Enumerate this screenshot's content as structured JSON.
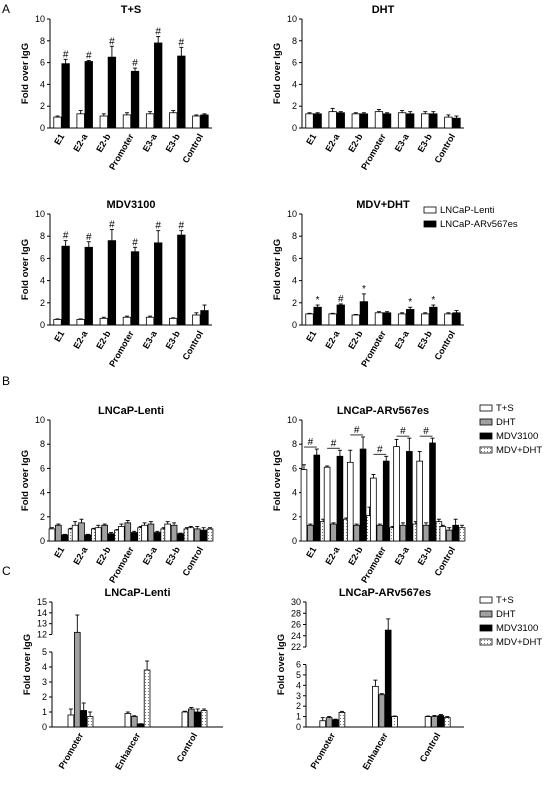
{
  "figure": {
    "panel_labels": [
      "A",
      "B",
      "C"
    ]
  },
  "chart_data": [
    {
      "panel": "A",
      "type": "bar",
      "title": "T+S",
      "ylabel": "Fold over IgG",
      "ylim": [
        0,
        10
      ],
      "yticks": [
        0,
        2,
        4,
        6,
        8,
        10
      ],
      "categories": [
        "E1",
        "E2-a",
        "E2-b",
        "Promoter",
        "E3-a",
        "E3-b",
        "Control"
      ],
      "series": [
        {
          "name": "LNCaP-Lenti",
          "values": [
            1.0,
            1.3,
            1.1,
            1.2,
            1.3,
            1.4,
            1.1
          ],
          "errors": [
            0.1,
            0.3,
            0.2,
            0.2,
            0.2,
            0.2,
            0.1
          ],
          "fill": "#ffffff"
        },
        {
          "name": "LNCaP-ARv567es",
          "values": [
            5.9,
            6.1,
            6.5,
            5.2,
            7.8,
            6.6,
            1.2
          ],
          "errors": [
            0.4,
            0.1,
            1.0,
            0.3,
            0.6,
            0.8,
            0.1
          ],
          "fill": "#000000"
        }
      ],
      "annotations": [
        "",
        "#",
        "",
        "#",
        "",
        "#",
        "",
        "#",
        "",
        "#",
        "",
        "#",
        "",
        ""
      ]
    },
    {
      "panel": "A",
      "type": "bar",
      "title": "DHT",
      "ylabel": "Fold over IgG",
      "ylim": [
        0,
        10
      ],
      "yticks": [
        0,
        2,
        4,
        6,
        8,
        10
      ],
      "categories": [
        "E1",
        "E2-a",
        "E2-b",
        "Promoter",
        "E3-a",
        "E3-b",
        "Control"
      ],
      "series": [
        {
          "name": "LNCaP-Lenti",
          "values": [
            1.3,
            1.5,
            1.3,
            1.5,
            1.4,
            1.3,
            1.0
          ],
          "errors": [
            0.1,
            0.3,
            0.1,
            0.2,
            0.2,
            0.2,
            0.2
          ],
          "fill": "#ffffff"
        },
        {
          "name": "LNCaP-ARv567es",
          "values": [
            1.3,
            1.4,
            1.3,
            1.3,
            1.3,
            1.3,
            0.9
          ],
          "errors": [
            0.1,
            0.1,
            0.1,
            0.1,
            0.2,
            0.2,
            0.2
          ],
          "fill": "#000000"
        }
      ],
      "annotations": []
    },
    {
      "panel": "A",
      "type": "bar",
      "title": "MDV3100",
      "ylabel": "Fold over IgG",
      "ylim": [
        0,
        10
      ],
      "yticks": [
        0,
        2,
        4,
        6,
        8,
        10
      ],
      "categories": [
        "E1",
        "E2-a",
        "E2-b",
        "Promoter",
        "E3-a",
        "E3-b",
        "Control"
      ],
      "series": [
        {
          "name": "LNCaP-Lenti",
          "values": [
            0.5,
            0.5,
            0.6,
            0.7,
            0.7,
            0.6,
            0.9
          ],
          "errors": [
            0.05,
            0.05,
            0.1,
            0.1,
            0.1,
            0.05,
            0.2
          ],
          "fill": "#ffffff"
        },
        {
          "name": "LNCaP-ARv567es",
          "values": [
            7.1,
            7.0,
            7.6,
            6.6,
            7.4,
            8.1,
            1.3
          ],
          "errors": [
            0.5,
            0.5,
            1.0,
            0.4,
            1.1,
            0.4,
            0.5
          ],
          "fill": "#000000"
        }
      ],
      "annotations": [
        "",
        "#",
        "",
        "#",
        "",
        "#",
        "",
        "#",
        "",
        "#",
        "",
        "#",
        "",
        ""
      ]
    },
    {
      "panel": "A",
      "type": "bar",
      "title": "MDV+DHT",
      "ylabel": "Fold over IgG",
      "ylim": [
        0,
        10
      ],
      "yticks": [
        0,
        2,
        4,
        6,
        8,
        10
      ],
      "categories": [
        "E1",
        "E2-a",
        "E2-b",
        "Promoter",
        "E3-a",
        "E3-b",
        "Control"
      ],
      "series": [
        {
          "name": "LNCaP-Lenti",
          "values": [
            1.0,
            1.0,
            0.9,
            1.1,
            1.0,
            1.0,
            1.0
          ],
          "errors": [
            0.05,
            0.05,
            0.05,
            0.1,
            0.1,
            0.1,
            0.1
          ],
          "fill": "#ffffff"
        },
        {
          "name": "LNCaP-ARv567es",
          "values": [
            1.6,
            1.8,
            2.1,
            1.1,
            1.4,
            1.6,
            1.1
          ],
          "errors": [
            0.2,
            0.1,
            0.7,
            0.1,
            0.2,
            0.2,
            0.2
          ],
          "fill": "#000000"
        }
      ],
      "annotations": [
        "",
        "*",
        "",
        "#",
        "",
        "*",
        "",
        "",
        "",
        "*",
        "",
        "*",
        "",
        ""
      ]
    },
    {
      "panel": "B",
      "type": "bar",
      "title": "LNCaP-Lenti",
      "ylabel": "Fold over IgG",
      "ylim": [
        0,
        10
      ],
      "yticks": [
        0,
        2,
        4,
        6,
        8,
        10
      ],
      "categories": [
        "E1",
        "E2-a",
        "E2-b",
        "Promoter",
        "E3-a",
        "E3-b",
        "Control"
      ],
      "series": [
        {
          "name": "T+S",
          "values": [
            1.0,
            1.3,
            1.1,
            1.2,
            1.3,
            1.4,
            1.1
          ],
          "errors": [
            0.1,
            0.3,
            0.2,
            0.2,
            0.2,
            0.2,
            0.1
          ],
          "fill": "#ffffff"
        },
        {
          "name": "DHT",
          "values": [
            1.3,
            1.5,
            1.3,
            1.5,
            1.4,
            1.3,
            1.0
          ],
          "errors": [
            0.1,
            0.3,
            0.1,
            0.2,
            0.2,
            0.2,
            0.2
          ],
          "fill": "#a0a0a0"
        },
        {
          "name": "MDV3100",
          "values": [
            0.5,
            0.5,
            0.6,
            0.7,
            0.7,
            0.6,
            0.9
          ],
          "errors": [
            0.05,
            0.05,
            0.1,
            0.1,
            0.1,
            0.05,
            0.2
          ],
          "fill": "#000000"
        },
        {
          "name": "MDV+DHT",
          "values": [
            1.0,
            1.0,
            0.9,
            1.1,
            1.0,
            1.0,
            1.0
          ],
          "errors": [
            0.05,
            0.05,
            0.05,
            0.1,
            0.1,
            0.1,
            0.1
          ],
          "fill": "#f4f4f4"
        }
      ],
      "annotations": []
    },
    {
      "panel": "B",
      "type": "bar",
      "title": "LNCaP-ARv567es",
      "ylabel": "Fold over IgG",
      "ylim": [
        0,
        10
      ],
      "yticks": [
        0,
        2,
        4,
        6,
        8,
        10
      ],
      "categories": [
        "E1",
        "E2-a",
        "E2-b",
        "Promoter",
        "E3-a",
        "E3-b",
        "Control"
      ],
      "series": [
        {
          "name": "T+S",
          "values": [
            5.9,
            6.1,
            6.5,
            5.2,
            7.8,
            6.6,
            1.2
          ],
          "errors": [
            0.4,
            0.1,
            1.0,
            0.3,
            0.6,
            0.8,
            0.1
          ],
          "fill": "#ffffff"
        },
        {
          "name": "DHT",
          "values": [
            1.3,
            1.4,
            1.3,
            1.3,
            1.3,
            1.3,
            0.9
          ],
          "errors": [
            0.1,
            0.1,
            0.1,
            0.1,
            0.2,
            0.2,
            0.2
          ],
          "fill": "#a0a0a0"
        },
        {
          "name": "MDV3100",
          "values": [
            7.1,
            7.0,
            7.6,
            6.6,
            7.4,
            8.1,
            1.3
          ],
          "errors": [
            0.5,
            0.5,
            1.0,
            0.4,
            1.1,
            0.4,
            0.5
          ],
          "fill": "#000000"
        },
        {
          "name": "MDV+DHT",
          "values": [
            1.6,
            1.8,
            2.1,
            1.1,
            1.4,
            1.6,
            1.1
          ],
          "errors": [
            0.2,
            0.1,
            0.7,
            0.1,
            0.2,
            0.2,
            0.2
          ],
          "fill": "#f4f4f4"
        }
      ],
      "annotations": [
        "#",
        "#",
        "#",
        "#",
        "#",
        "#",
        ""
      ]
    },
    {
      "panel": "C",
      "type": "bar",
      "title": "LNCaP-Lenti",
      "ylabel": "Fold over IgG",
      "broken_axis": {
        "lower": [
          0,
          5
        ],
        "upper": [
          12,
          15
        ]
      },
      "yticks": [
        0,
        1,
        2,
        3,
        4,
        5,
        12,
        13,
        14,
        15
      ],
      "categories": [
        "Promoter",
        "Enhancer",
        "Control"
      ],
      "series": [
        {
          "name": "T+S",
          "values": [
            0.8,
            0.9,
            1.0
          ],
          "errors": [
            0.4,
            0.1,
            0.05
          ],
          "fill": "#ffffff"
        },
        {
          "name": "DHT",
          "values": [
            12.2,
            0.7,
            1.2
          ],
          "errors": [
            1.6,
            0.05,
            0.1
          ],
          "fill": "#a0a0a0"
        },
        {
          "name": "MDV3100",
          "values": [
            1.1,
            0.2,
            1.0
          ],
          "errors": [
            0.5,
            0.02,
            0.2
          ],
          "fill": "#000000"
        },
        {
          "name": "MDV+DHT",
          "values": [
            0.7,
            3.8,
            1.1
          ],
          "errors": [
            0.3,
            0.6,
            0.1
          ],
          "fill": "#f4f4f4"
        }
      ]
    },
    {
      "panel": "C",
      "type": "bar",
      "title": "LNCaP-ARv567es",
      "ylabel": "Fold over IgG",
      "broken_axis": {
        "lower": [
          0,
          6
        ],
        "upper": [
          22,
          30
        ]
      },
      "yticks": [
        0,
        1,
        2,
        3,
        4,
        5,
        6,
        22,
        24,
        26,
        28,
        30
      ],
      "categories": [
        "Promoter",
        "Enhancer",
        "Control"
      ],
      "series": [
        {
          "name": "T+S",
          "values": [
            0.6,
            3.9,
            1.0
          ],
          "errors": [
            0.3,
            0.6,
            0.05
          ],
          "fill": "#ffffff"
        },
        {
          "name": "DHT",
          "values": [
            0.9,
            3.1,
            1.0
          ],
          "errors": [
            0.1,
            0.1,
            0.1
          ],
          "fill": "#a0a0a0"
        },
        {
          "name": "MDV3100",
          "values": [
            0.7,
            25.0,
            1.1
          ],
          "errors": [
            0.05,
            2.0,
            0.1
          ],
          "fill": "#000000"
        },
        {
          "name": "MDV+DHT",
          "values": [
            1.4,
            1.0,
            0.9
          ],
          "errors": [
            0.1,
            0.05,
            0.1
          ],
          "fill": "#f4f4f4"
        }
      ]
    }
  ],
  "legends": {
    "A": [
      {
        "label": "LNCaP-Lenti",
        "fill": "#ffffff"
      },
      {
        "label": "LNCaP-ARv567es",
        "fill": "#000000"
      }
    ],
    "B": [
      {
        "label": "T+S",
        "fill": "#ffffff"
      },
      {
        "label": "DHT",
        "fill": "#a0a0a0"
      },
      {
        "label": "MDV3100",
        "fill": "#000000"
      },
      {
        "label": "MDV+DHT",
        "fill": "#f4f4f4"
      }
    ],
    "C": [
      {
        "label": "T+S",
        "fill": "#ffffff"
      },
      {
        "label": "DHT",
        "fill": "#a0a0a0"
      },
      {
        "label": "MDV3100",
        "fill": "#000000"
      },
      {
        "label": "MDV+DHT",
        "fill": "#f4f4f4"
      }
    ]
  }
}
